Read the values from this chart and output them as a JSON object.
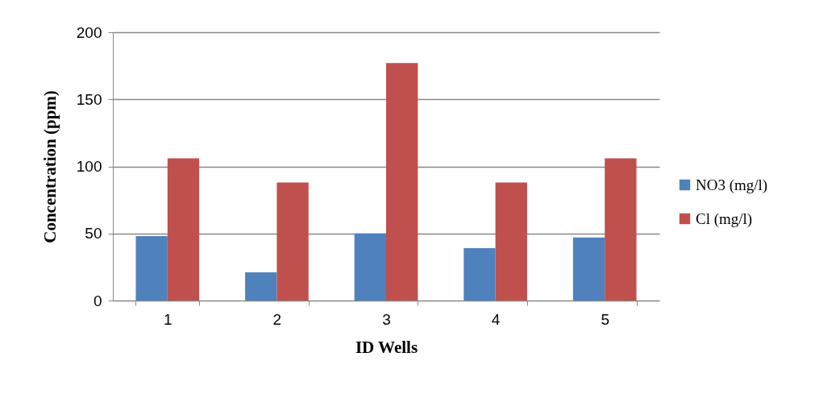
{
  "chart_data": {
    "type": "bar",
    "xlabel": "ID Wells",
    "ylabel": "Concentration (ppm)",
    "categories": [
      "1",
      "2",
      "3",
      "4",
      "5"
    ],
    "series": [
      {
        "name": "NO3 (mg/l)",
        "color": "#4f81bd",
        "values": [
          48,
          21,
          50,
          39,
          47
        ]
      },
      {
        "name": "Cl (mg/l)",
        "color": "#c0504d",
        "values": [
          106,
          88,
          177,
          88,
          106
        ]
      }
    ],
    "ylim": [
      0,
      200
    ],
    "yticks": [
      0,
      50,
      100,
      150,
      200
    ],
    "grid": "y",
    "legend": "right"
  }
}
